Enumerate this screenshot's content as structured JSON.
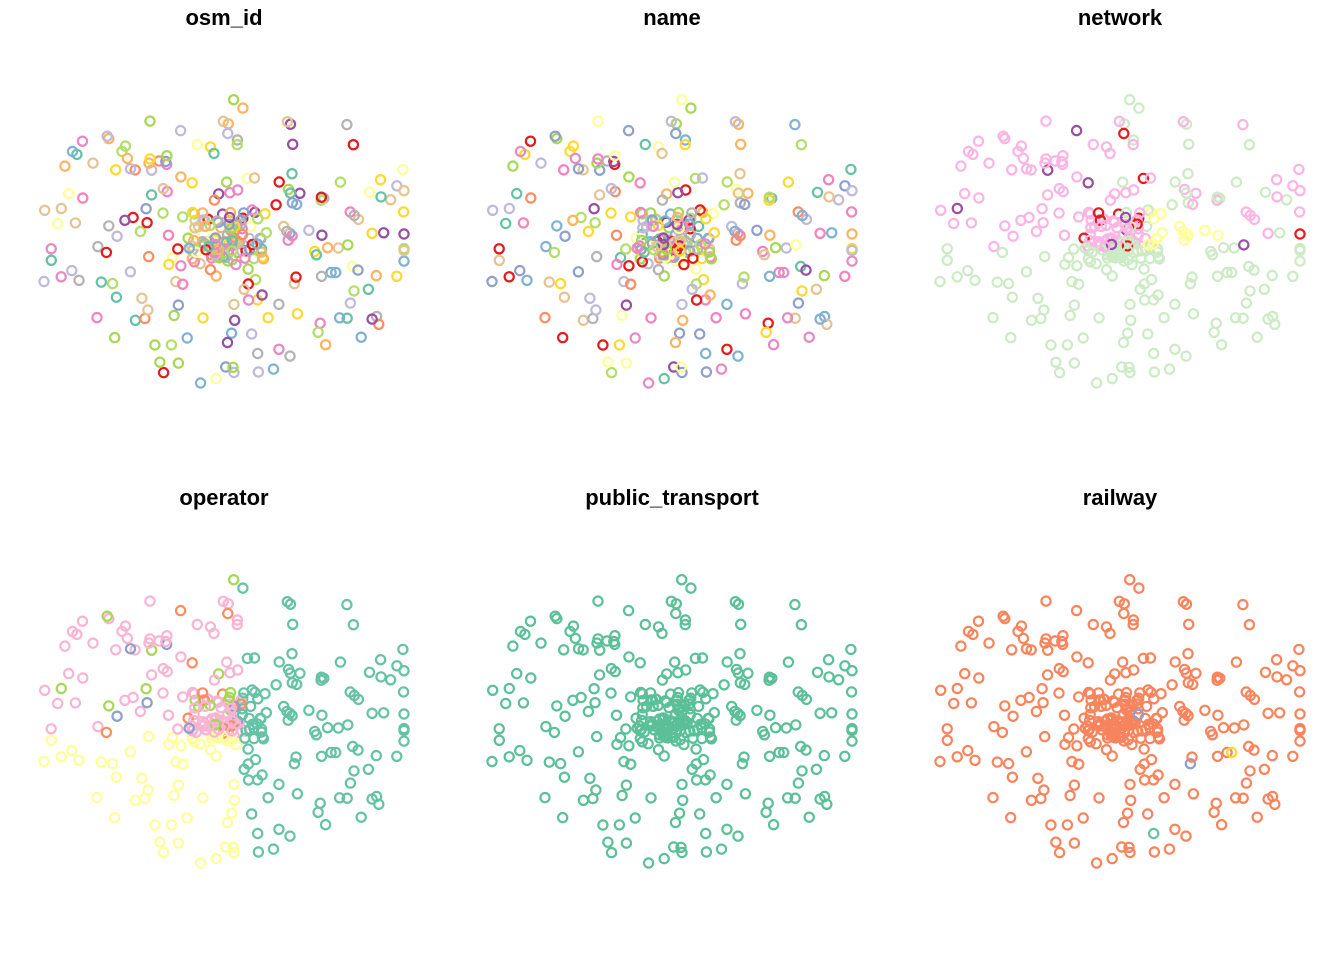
{
  "chart_data": [
    {
      "type": "scatter",
      "title": "osm_id",
      "coloring": "categorical",
      "palette": [
        "#66C2A5",
        "#FC8D62",
        "#8DA0CB",
        "#E78AC3",
        "#A6D854",
        "#FFD92F",
        "#E5C494",
        "#B3B3B3",
        "#984EA3",
        "#E41A1C",
        "#FFFF99",
        "#F781BF",
        "#BEBADA",
        "#80B1D3",
        "#FDB462",
        "#B3DE69"
      ],
      "point_count": 300,
      "grid": false,
      "legend": "none"
    },
    {
      "type": "scatter",
      "title": "name",
      "coloring": "categorical",
      "palette": [
        "#66C2A5",
        "#FC8D62",
        "#8DA0CB",
        "#E78AC3",
        "#A6D854",
        "#FFD92F",
        "#E5C494",
        "#B3B3B3",
        "#984EA3",
        "#E41A1C",
        "#FFFF99",
        "#F781BF",
        "#BEBADA",
        "#80B1D3",
        "#FDB462",
        "#B3DE69"
      ],
      "point_count": 300,
      "grid": false,
      "legend": "none"
    },
    {
      "type": "scatter",
      "title": "network",
      "coloring": "categorical",
      "palette": [
        "#CCEBC5",
        "#FBB4E3",
        "#FFFF99",
        "#E41A1C",
        "#984EA3",
        "#FDAE61",
        "#4575B4",
        "#A6D854"
      ],
      "point_count": 300,
      "grid": false,
      "legend": "none"
    },
    {
      "type": "scatter",
      "title": "operator",
      "coloring": "categorical",
      "palette": [
        "#66C2A5",
        "#FFFF99",
        "#F9B4D4",
        "#FC8D62",
        "#A6D854",
        "#8DA0CB",
        "#984EA3",
        "#FDB462"
      ],
      "point_count": 300,
      "grid": false,
      "legend": "none"
    },
    {
      "type": "scatter",
      "title": "public_transport",
      "coloring": "single",
      "palette": [
        "#5BBF97"
      ],
      "point_count": 300,
      "grid": false,
      "legend": "none"
    },
    {
      "type": "scatter",
      "title": "railway",
      "coloring": "single-with-few-exceptions",
      "palette": [
        "#F7845C",
        "#FFD92F",
        "#A6D854",
        "#8DA0CB",
        "#66C2A5"
      ],
      "point_count": 300,
      "grid": false,
      "legend": "none"
    }
  ]
}
